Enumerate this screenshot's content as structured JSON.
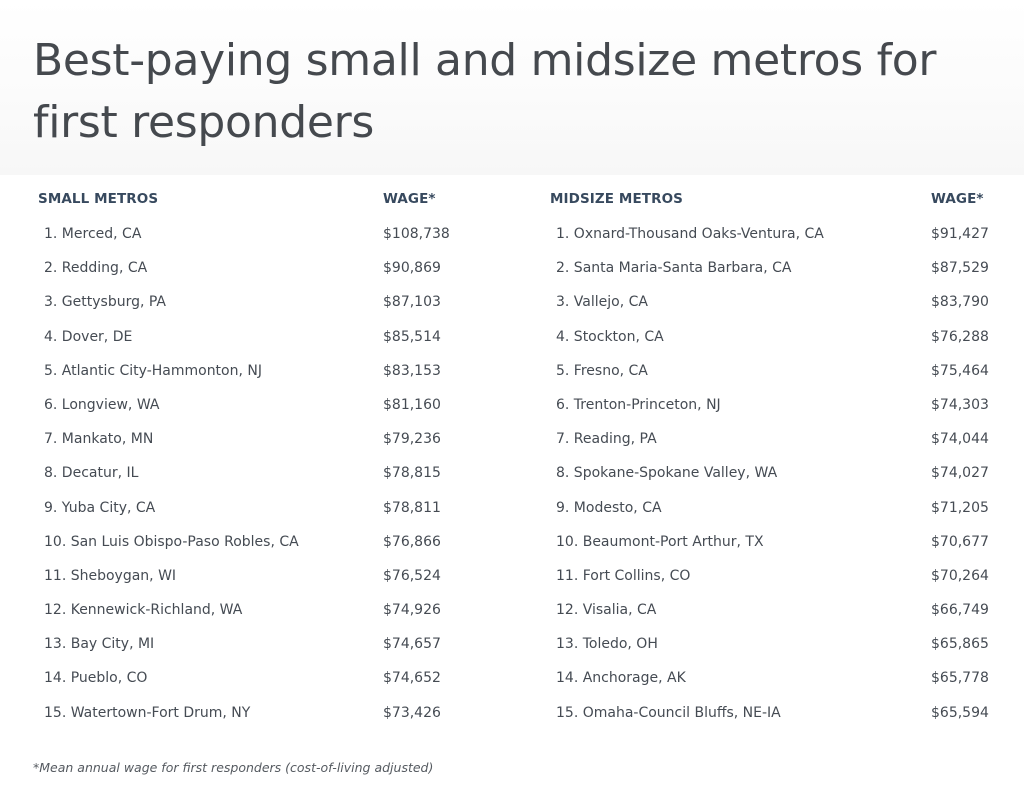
{
  "title": "Best-paying small and midsize metros for first responders",
  "small": {
    "header": "SMALL METROS",
    "wage_header": "WAGE*",
    "rows": [
      {
        "name": "1. Merced, CA",
        "wage": "$108,738"
      },
      {
        "name": "2. Redding, CA",
        "wage": "$90,869"
      },
      {
        "name": "3. Gettysburg, PA",
        "wage": "$87,103"
      },
      {
        "name": "4. Dover, DE",
        "wage": "$85,514"
      },
      {
        "name": "5. Atlantic City-Hammonton, NJ",
        "wage": "$83,153"
      },
      {
        "name": "6. Longview, WA",
        "wage": "$81,160"
      },
      {
        "name": "7. Mankato, MN",
        "wage": "$79,236"
      },
      {
        "name": "8. Decatur, IL",
        "wage": "$78,815"
      },
      {
        "name": "9. Yuba City, CA",
        "wage": "$78,811"
      },
      {
        "name": "10. San Luis Obispo-Paso Robles, CA",
        "wage": "$76,866"
      },
      {
        "name": "11. Sheboygan, WI",
        "wage": "$76,524"
      },
      {
        "name": "12. Kennewick-Richland, WA",
        "wage": "$74,926"
      },
      {
        "name": "13. Bay City, MI",
        "wage": "$74,657"
      },
      {
        "name": "14. Pueblo, CO",
        "wage": "$74,652"
      },
      {
        "name": "15. Watertown-Fort Drum, NY",
        "wage": "$73,426"
      }
    ]
  },
  "midsize": {
    "header": "MIDSIZE METROS",
    "wage_header": "WAGE*",
    "rows": [
      {
        "name": "1. Oxnard-Thousand Oaks-Ventura, CA",
        "wage": "$91,427"
      },
      {
        "name": "2. Santa Maria-Santa Barbara, CA",
        "wage": "$87,529"
      },
      {
        "name": "3. Vallejo, CA",
        "wage": "$83,790"
      },
      {
        "name": "4. Stockton, CA",
        "wage": "$76,288"
      },
      {
        "name": "5. Fresno, CA",
        "wage": "$75,464"
      },
      {
        "name": "6. Trenton-Princeton, NJ",
        "wage": "$74,303"
      },
      {
        "name": "7. Reading, PA",
        "wage": "$74,044"
      },
      {
        "name": "8. Spokane-Spokane Valley, WA",
        "wage": "$74,027"
      },
      {
        "name": "9. Modesto, CA",
        "wage": "$71,205"
      },
      {
        "name": "10. Beaumont-Port Arthur, TX",
        "wage": "$70,677"
      },
      {
        "name": "11. Fort Collins, CO",
        "wage": "$70,264"
      },
      {
        "name": "12. Visalia, CA",
        "wage": "$66,749"
      },
      {
        "name": "13. Toledo, OH",
        "wage": "$65,865"
      },
      {
        "name": "14. Anchorage, AK",
        "wage": "$65,778"
      },
      {
        "name": "15. Omaha-Council Bluffs, NE-IA",
        "wage": "$65,594"
      }
    ]
  },
  "footnote": "*Mean annual wage for first responders (cost-of-living adjusted)"
}
